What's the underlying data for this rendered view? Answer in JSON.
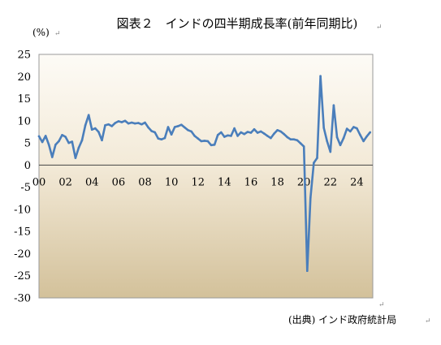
{
  "chart_data": {
    "type": "line",
    "title": "図表２　インドの四半期成長率(前年同期比)",
    "ylabel": "(%)",
    "source": "(出典) インド政府統計局",
    "ylim": [
      -30,
      25
    ],
    "yticks": [
      "25",
      "20",
      "15",
      "10",
      "5",
      "0",
      "-5",
      "-10",
      "-15",
      "-20",
      "-25",
      "-30"
    ],
    "xlim": [
      2000.0,
      2025.2
    ],
    "xticks": [
      {
        "label": "00",
        "x": 2000
      },
      {
        "label": "02",
        "x": 2002
      },
      {
        "label": "04",
        "x": 2004
      },
      {
        "label": "06",
        "x": 2006
      },
      {
        "label": "08",
        "x": 2008
      },
      {
        "label": "10",
        "x": 2010
      },
      {
        "label": "12",
        "x": 2012
      },
      {
        "label": "14",
        "x": 2014
      },
      {
        "label": "16",
        "x": 2016
      },
      {
        "label": "18",
        "x": 2018
      },
      {
        "label": "20",
        "x": 2020
      },
      {
        "label": "22",
        "x": 2022
      },
      {
        "label": "24",
        "x": 2024
      }
    ],
    "line_color": "#4a7ebb",
    "series": [
      {
        "x": [
          2000.0,
          2000.25,
          2000.5,
          2000.75,
          2001.0,
          2001.25,
          2001.5,
          2001.75,
          2002.0,
          2002.25,
          2002.5,
          2002.75,
          2003.0,
          2003.25,
          2003.5,
          2003.75,
          2004.0,
          2004.25,
          2004.5,
          2004.75,
          2005.0,
          2005.25,
          2005.5,
          2005.75,
          2006.0,
          2006.25,
          2006.5,
          2006.75,
          2007.0,
          2007.25,
          2007.5,
          2007.75,
          2008.0,
          2008.25,
          2008.5,
          2008.75,
          2009.0,
          2009.25,
          2009.5,
          2009.75,
          2010.0,
          2010.25,
          2010.5,
          2010.75,
          2011.0,
          2011.25,
          2011.5,
          2011.75,
          2012.0,
          2012.25,
          2012.5,
          2012.75,
          2013.0,
          2013.25,
          2013.5,
          2013.75,
          2014.0,
          2014.25,
          2014.5,
          2014.75,
          2015.0,
          2015.25,
          2015.5,
          2015.75,
          2016.0,
          2016.25,
          2016.5,
          2016.75,
          2017.0,
          2017.25,
          2017.5,
          2017.75,
          2018.0,
          2018.25,
          2018.5,
          2018.75,
          2019.0,
          2019.25,
          2019.5,
          2019.75,
          2020.0,
          2020.25,
          2020.5,
          2020.75,
          2021.0,
          2021.25,
          2021.5,
          2021.75,
          2022.0,
          2022.25,
          2022.5,
          2022.75,
          2023.0,
          2023.25,
          2023.5,
          2023.75,
          2024.0,
          2024.25,
          2024.5,
          2024.75,
          2025.0
        ],
        "y": [
          6.5,
          5.2,
          6.6,
          4.6,
          1.8,
          4.6,
          5.4,
          6.8,
          6.4,
          5.0,
          5.3,
          1.6,
          3.9,
          5.6,
          9.0,
          11.3,
          8.0,
          8.3,
          7.5,
          5.6,
          9.0,
          9.2,
          8.8,
          9.5,
          9.9,
          9.7,
          10.0,
          9.4,
          9.6,
          9.4,
          9.5,
          9.2,
          9.6,
          8.5,
          7.7,
          7.4,
          6.0,
          5.8,
          6.1,
          8.6,
          6.9,
          8.6,
          8.8,
          9.1,
          8.5,
          7.9,
          7.6,
          6.6,
          6.0,
          5.4,
          5.5,
          5.4,
          4.5,
          4.6,
          6.8,
          7.4,
          6.4,
          6.7,
          6.6,
          8.3,
          6.6,
          7.4,
          7.0,
          7.5,
          7.3,
          8.1,
          7.3,
          7.6,
          7.1,
          6.6,
          6.1,
          7.1,
          7.9,
          7.6,
          7.0,
          6.3,
          5.8,
          5.8,
          5.6,
          4.9,
          4.2,
          -23.9,
          -7.4,
          0.5,
          1.6,
          20.1,
          8.4,
          5.4,
          3.0,
          13.5,
          6.3,
          4.5,
          6.1,
          8.2,
          7.6,
          8.6,
          8.3,
          6.8,
          5.4,
          6.5,
          7.4
        ]
      }
    ]
  }
}
